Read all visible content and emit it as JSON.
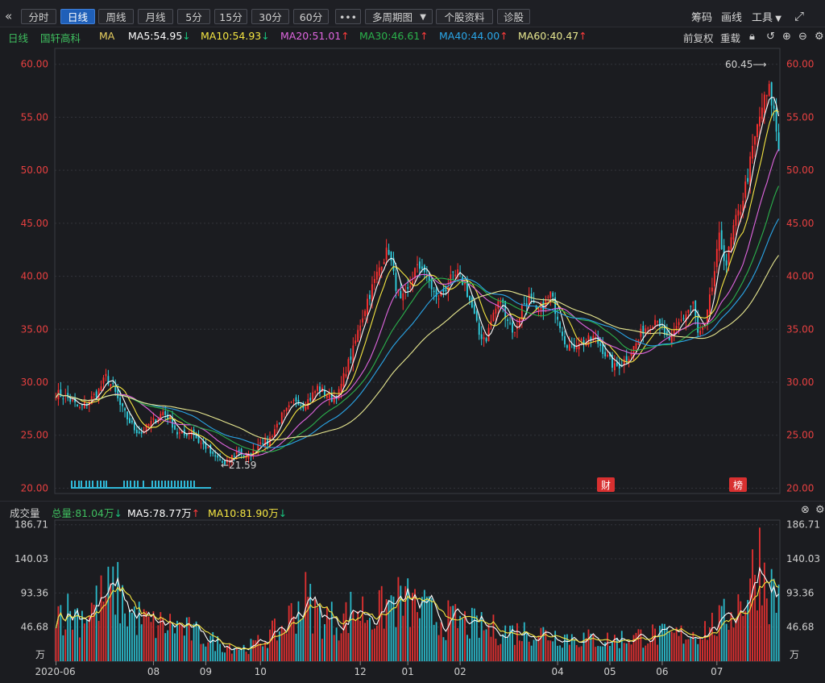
{
  "toolbar": {
    "collapse_icon": "double-chevron-left-icon",
    "tabs": [
      "分时",
      "日线",
      "周线",
      "月线",
      "5分",
      "15分",
      "30分",
      "60分"
    ],
    "active_tab": "日线",
    "more_label": "•••",
    "multi_period_label": "多周期图",
    "stock_info_label": "个股资料",
    "diagnose_label": "诊股",
    "right": [
      "筹码",
      "画线",
      "工具"
    ],
    "fullscreen_icon": "fullscreen-icon"
  },
  "legend": {
    "period": "日线",
    "stock_name": "国轩高科",
    "ma_label": "MA",
    "items": [
      {
        "text": "MA5:54.95",
        "dir": "down",
        "color": "#ffffff"
      },
      {
        "text": "MA10:54.93",
        "dir": "down",
        "color": "#f5e642"
      },
      {
        "text": "MA20:51.01",
        "dir": "up",
        "color": "#e066e0"
      },
      {
        "text": "MA30:46.61",
        "dir": "up",
        "color": "#2bb24c"
      },
      {
        "text": "MA40:44.00",
        "dir": "up",
        "color": "#2aa6e8"
      },
      {
        "text": "MA60:40.47",
        "dir": "up",
        "color": "#e8e890"
      }
    ],
    "adjust_label": "前复权",
    "reload_label": "重载"
  },
  "volume_header": {
    "title": "成交量",
    "total": "总量:81.04万",
    "ma5": "MA5:78.77万",
    "ma10": "MA10:81.90万"
  },
  "chart_data": [
    {
      "type": "candlestick",
      "title": "国轩高科 日线",
      "y_ticks": [
        60,
        55,
        50,
        45,
        40,
        35,
        30,
        25,
        20
      ],
      "ylim": [
        19.5,
        61.5
      ],
      "x_labels": [
        "2020-06",
        "08",
        "09",
        "10",
        "12",
        "01",
        "02",
        "04",
        "05",
        "06",
        "07"
      ],
      "annotations": {
        "high": "60.45",
        "low": "21.59",
        "badge_cai": "财",
        "badge_bang": "榜"
      },
      "close_anchors": [
        [
          0,
          29.0
        ],
        [
          5,
          28.5
        ],
        [
          10,
          27.5
        ],
        [
          15,
          28.5
        ],
        [
          18,
          29.2
        ],
        [
          21,
          30.5
        ],
        [
          24,
          29.5
        ],
        [
          27,
          27.8
        ],
        [
          30,
          26.6
        ],
        [
          33,
          25.6
        ],
        [
          36,
          25.2
        ],
        [
          39,
          26.0
        ],
        [
          42,
          26.5
        ],
        [
          45,
          27.2
        ],
        [
          48,
          26.5
        ],
        [
          51,
          25.2
        ],
        [
          54,
          25.0
        ],
        [
          57,
          25.5
        ],
        [
          60,
          24.4
        ],
        [
          63,
          23.9
        ],
        [
          66,
          23.0
        ],
        [
          69,
          22.7
        ],
        [
          71,
          22.1
        ],
        [
          74,
          23.0
        ],
        [
          77,
          23.6
        ],
        [
          80,
          22.8
        ],
        [
          83,
          23.5
        ],
        [
          86,
          24.6
        ],
        [
          89,
          24.3
        ],
        [
          92,
          25.6
        ],
        [
          95,
          26.8
        ],
        [
          98,
          27.5
        ],
        [
          101,
          28.4
        ],
        [
          104,
          27.9
        ],
        [
          107,
          28.5
        ],
        [
          110,
          29.5
        ],
        [
          113,
          29.0
        ],
        [
          116,
          28.5
        ],
        [
          119,
          29.0
        ],
        [
          122,
          31.2
        ],
        [
          125,
          33.0
        ],
        [
          128,
          35.6
        ],
        [
          131,
          37.8
        ],
        [
          134,
          39.5
        ],
        [
          137,
          41.5
        ],
        [
          140,
          42.5
        ],
        [
          142,
          40.0
        ],
        [
          145,
          37.5
        ],
        [
          148,
          38.5
        ],
        [
          151,
          40.5
        ],
        [
          154,
          41.0
        ],
        [
          157,
          39.5
        ],
        [
          160,
          37.8
        ],
        [
          163,
          38.6
        ],
        [
          166,
          39.6
        ],
        [
          169,
          40.2
        ],
        [
          172,
          39.2
        ],
        [
          175,
          37.0
        ],
        [
          178,
          34.5
        ],
        [
          181,
          34.2
        ],
        [
          184,
          36.5
        ],
        [
          187,
          37.8
        ],
        [
          190,
          36.0
        ],
        [
          193,
          34.5
        ],
        [
          196,
          37.2
        ],
        [
          199,
          38.0
        ],
        [
          202,
          36.5
        ],
        [
          205,
          37.2
        ],
        [
          208,
          38.3
        ],
        [
          211,
          36.3
        ],
        [
          214,
          34.0
        ],
        [
          217,
          33.2
        ],
        [
          220,
          34.0
        ],
        [
          223,
          33.8
        ],
        [
          226,
          34.2
        ],
        [
          229,
          33.5
        ],
        [
          232,
          32.3
        ],
        [
          235,
          31.4
        ],
        [
          238,
          31.8
        ],
        [
          241,
          32.6
        ],
        [
          244,
          33.6
        ],
        [
          247,
          35.0
        ],
        [
          250,
          35.5
        ],
        [
          253,
          36.2
        ],
        [
          256,
          34.2
        ],
        [
          259,
          34.0
        ],
        [
          262,
          35.5
        ],
        [
          265,
          36.5
        ],
        [
          268,
          37.5
        ],
        [
          270,
          34.5
        ],
        [
          273,
          35.2
        ],
        [
          276,
          39.0
        ],
        [
          279,
          43.5
        ],
        [
          282,
          41.2
        ],
        [
          285,
          44.5
        ],
        [
          288,
          46.5
        ],
        [
          291,
          49.5
        ],
        [
          294,
          53.0
        ],
        [
          297,
          56.0
        ],
        [
          300,
          57.5
        ],
        [
          302,
          55.5
        ],
        [
          304,
          52.0
        ]
      ],
      "ma_series": [
        {
          "name": "MA5",
          "color": "#ffffff",
          "period": 5
        },
        {
          "name": "MA10",
          "color": "#f5e642",
          "period": 10
        },
        {
          "name": "MA20",
          "color": "#e066e0",
          "period": 20
        },
        {
          "name": "MA30",
          "color": "#2bb24c",
          "period": 30
        },
        {
          "name": "MA40",
          "color": "#2aa6e8",
          "period": 40
        },
        {
          "name": "MA60",
          "color": "#e8e890",
          "period": 60
        }
      ]
    },
    {
      "type": "bar",
      "title": "成交量",
      "y_ticks": [
        186.71,
        140.03,
        93.36,
        46.68
      ],
      "y_unit": "万",
      "ylim": [
        0,
        193
      ],
      "volume_anchors": [
        [
          0,
          80
        ],
        [
          10,
          70
        ],
        [
          20,
          95
        ],
        [
          25,
          110
        ],
        [
          30,
          75
        ],
        [
          40,
          55
        ],
        [
          50,
          55
        ],
        [
          60,
          40
        ],
        [
          70,
          25
        ],
        [
          80,
          20
        ],
        [
          85,
          28
        ],
        [
          95,
          50
        ],
        [
          100,
          75
        ],
        [
          105,
          95
        ],
        [
          110,
          70
        ],
        [
          120,
          60
        ],
        [
          125,
          80
        ],
        [
          130,
          75
        ],
        [
          135,
          70
        ],
        [
          140,
          88
        ],
        [
          145,
          90
        ],
        [
          150,
          85
        ],
        [
          160,
          65
        ],
        [
          170,
          60
        ],
        [
          180,
          50
        ],
        [
          190,
          45
        ],
        [
          200,
          45
        ],
        [
          210,
          40
        ],
        [
          220,
          35
        ],
        [
          230,
          32
        ],
        [
          240,
          35
        ],
        [
          250,
          40
        ],
        [
          260,
          38
        ],
        [
          270,
          45
        ],
        [
          280,
          60
        ],
        [
          285,
          80
        ],
        [
          290,
          100
        ],
        [
          293,
          130
        ],
        [
          296,
          160
        ],
        [
          300,
          110
        ],
        [
          305,
          95
        ]
      ]
    }
  ]
}
